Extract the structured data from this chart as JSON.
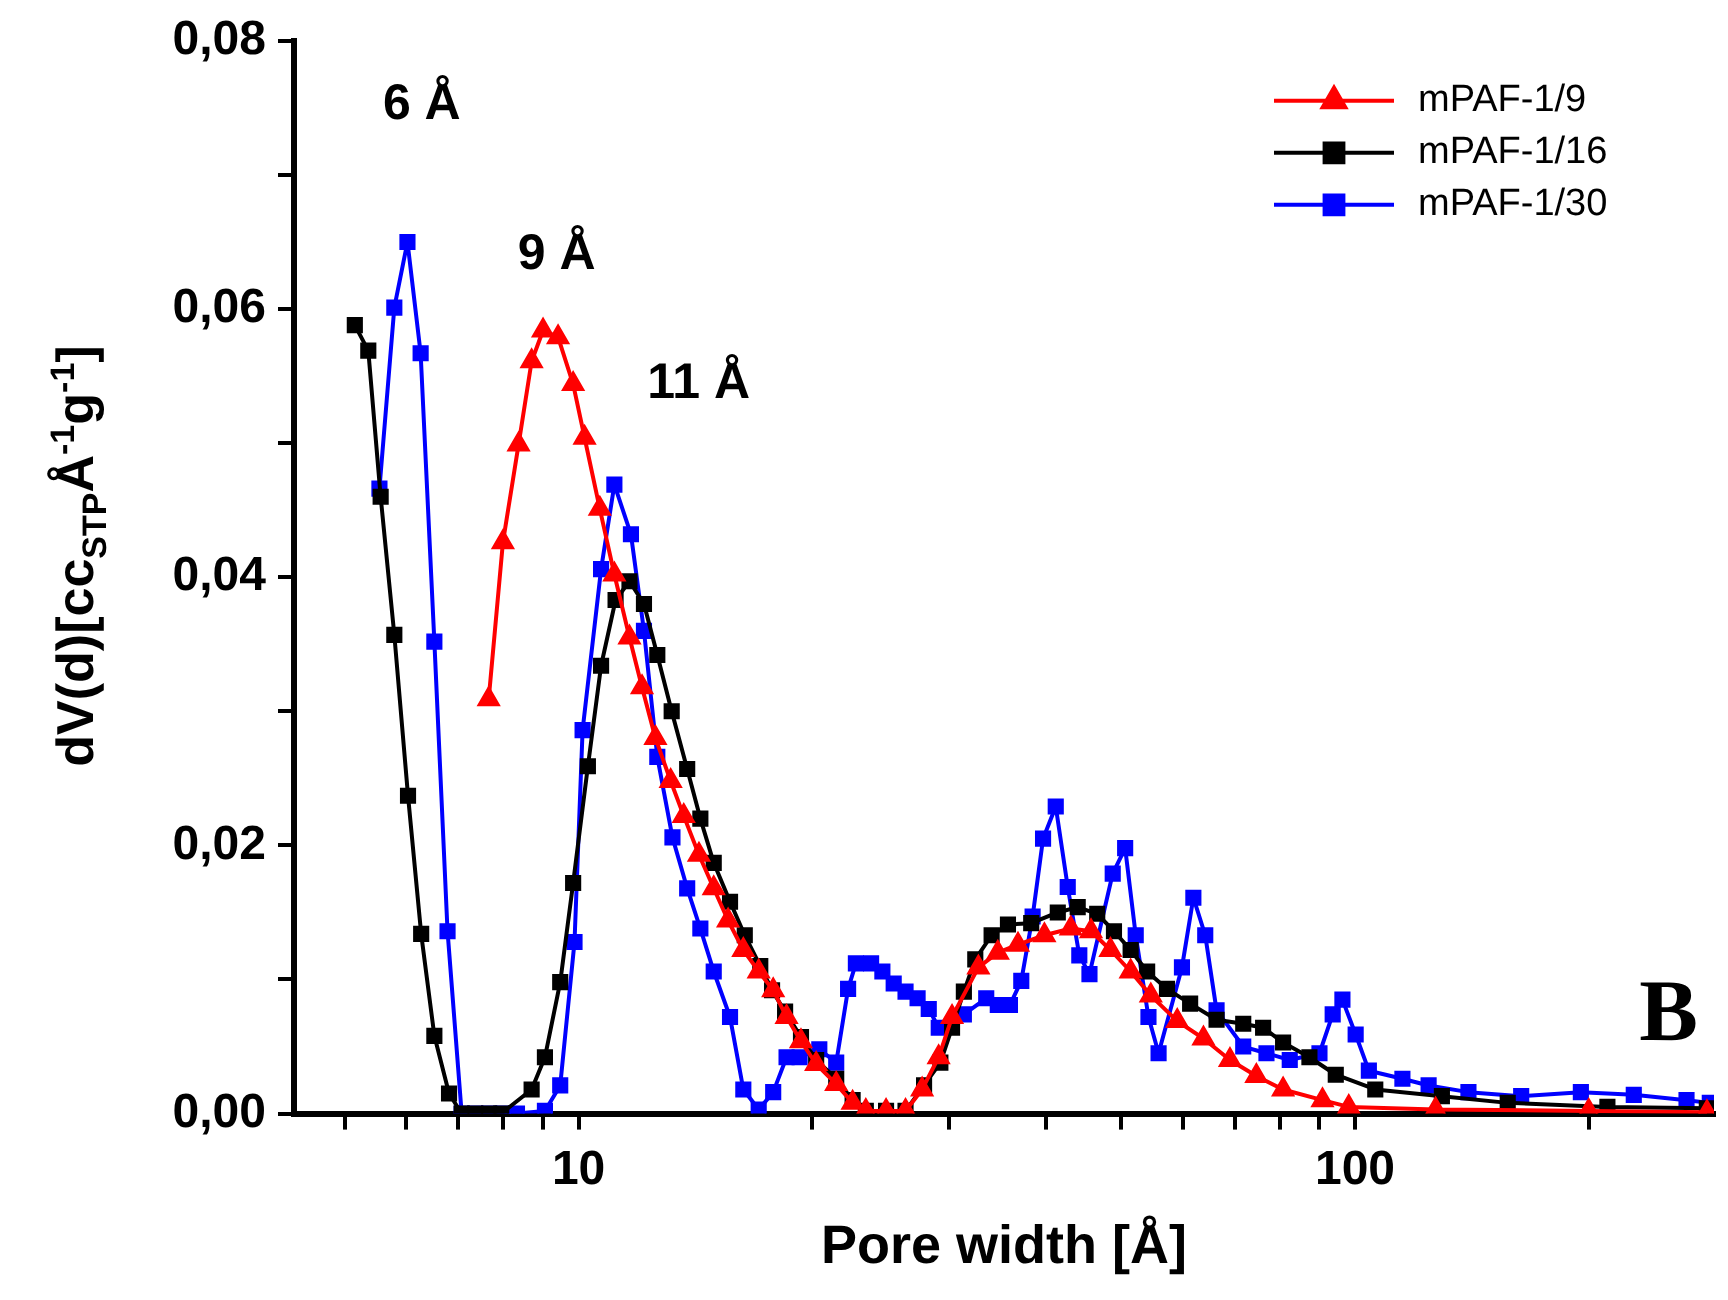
{
  "chart_data": {
    "type": "line",
    "xlabel": "Pore width [Å]",
    "ylabel": "dV(d)[cc$_{STP}$Å$^{-1}$g$^{-1}$]",
    "log": "x",
    "xlim": [
      4.3,
      290
    ],
    "ylim": [
      0,
      0.08
    ],
    "xticks": [
      {
        "value": 5,
        "label": null
      },
      {
        "value": 6,
        "label": null
      },
      {
        "value": 7,
        "label": null
      },
      {
        "value": 8,
        "label": null
      },
      {
        "value": 9,
        "label": null
      },
      10,
      {
        "value": 20,
        "label": null
      },
      {
        "value": 30,
        "label": null
      },
      {
        "value": 40,
        "label": null
      },
      {
        "value": 50,
        "label": null
      },
      {
        "value": 60,
        "label": null
      },
      {
        "value": 70,
        "label": null
      },
      {
        "value": 80,
        "label": null
      },
      {
        "value": 90,
        "label": null
      },
      100,
      {
        "value": 200,
        "label": null
      }
    ],
    "yticks": [
      {
        "value": 0,
        "label": "0,00"
      },
      {
        "value": 0.01,
        "label": null
      },
      {
        "value": 0.02,
        "label": "0,02"
      },
      {
        "value": 0.03,
        "label": null
      },
      {
        "value": 0.04,
        "label": "0,04"
      },
      {
        "value": 0.05,
        "label": null
      },
      {
        "value": 0.06,
        "label": "0,06"
      },
      {
        "value": 0.07,
        "label": null
      },
      {
        "value": 0.08,
        "label": "0,08"
      }
    ],
    "grid": false,
    "legend": "top right",
    "line_style": "solid",
    "annotations": [
      "6 Å",
      "9 Å",
      "11 Å",
      "B"
    ],
    "series": [
      {
        "name": "mPAF-1/9",
        "color": "#ff0000",
        "marker": "triangle",
        "x": [
          7.66,
          7.99,
          8.37,
          8.7,
          9.0,
          9.41,
          9.84,
          10.18,
          10.65,
          11.12,
          11.63,
          12.07,
          12.56,
          13.14,
          13.66,
          14.29,
          14.93,
          15.58,
          16.3,
          17.06,
          17.81,
          18.53,
          19.34,
          20.23,
          21.47,
          22.54,
          23.44,
          24.89,
          26.37,
          27.7,
          29.09,
          30.27,
          32.73,
          34.67,
          36.81,
          39.81,
          43.05,
          45.71,
          48.42,
          51.41,
          54.58,
          59.03,
          63.8,
          69.02,
          74.64,
          80.8,
          90.81,
          98.17,
          127,
          200,
          284
        ],
        "values": [
          0.0309,
          0.0426,
          0.0499,
          0.0561,
          0.0584,
          0.0579,
          0.0544,
          0.0504,
          0.0451,
          0.0402,
          0.0355,
          0.0318,
          0.028,
          0.0248,
          0.0222,
          0.0193,
          0.0168,
          0.0144,
          0.0122,
          0.0106,
          0.0092,
          0.0072,
          0.0054,
          0.0037,
          0.0022,
          0.0008,
          0.0002,
          0.0002,
          0.0002,
          0.0018,
          0.0042,
          0.0072,
          0.0109,
          0.012,
          0.0126,
          0.0133,
          0.0138,
          0.0136,
          0.0122,
          0.0106,
          0.0088,
          0.0069,
          0.0056,
          0.004,
          0.0028,
          0.0018,
          0.001,
          0.0005,
          0.0003,
          0.0002,
          0.0001
        ]
      },
      {
        "name": "mPAF-1/16",
        "color": "#000000",
        "marker": "square",
        "x": [
          5.15,
          5.36,
          5.56,
          5.79,
          6.03,
          6.27,
          6.52,
          6.81,
          7.07,
          7.36,
          7.67,
          7.95,
          8.7,
          9.05,
          9.47,
          9.84,
          10.28,
          10.69,
          11.16,
          11.63,
          12.14,
          12.63,
          13.18,
          13.8,
          14.35,
          14.93,
          15.67,
          16.37,
          17.14,
          17.75,
          18.45,
          19.34,
          20.23,
          21.47,
          22.54,
          23.44,
          24.89,
          26.37,
          27.86,
          29.24,
          30.27,
          31.35,
          32.43,
          34.04,
          35.73,
          38.28,
          41.42,
          43.94,
          46.56,
          48.93,
          51.41,
          53.99,
          57.26,
          61.33,
          66.33,
          71.79,
          76.15,
          80.8,
          87.36,
          94.46,
          106.2,
          129.4,
          157.3,
          211.4,
          283.9
        ],
        "values": [
          0.0588,
          0.0569,
          0.046,
          0.0357,
          0.0237,
          0.0134,
          0.0058,
          0.0015,
          0,
          0,
          0,
          0,
          0.0018,
          0.0042,
          0.0098,
          0.0172,
          0.0259,
          0.0334,
          0.0383,
          0.0397,
          0.038,
          0.0342,
          0.03,
          0.0257,
          0.022,
          0.0187,
          0.0158,
          0.0133,
          0.011,
          0.0092,
          0.0076,
          0.0057,
          0.004,
          0.0026,
          0.001,
          0.0002,
          0.0002,
          0.0002,
          0.0021,
          0.0038,
          0.0064,
          0.0091,
          0.0115,
          0.0133,
          0.0141,
          0.0142,
          0.015,
          0.0154,
          0.0149,
          0.0136,
          0.0122,
          0.0106,
          0.0093,
          0.0082,
          0.007,
          0.0067,
          0.0064,
          0.0053,
          0.0042,
          0.0029,
          0.0018,
          0.0013,
          0.0008,
          0.0005,
          0.0004
        ]
      },
      {
        "name": "mPAF-1/30",
        "color": "#0000ff",
        "marker": "square",
        "x": [
          5.54,
          5.79,
          6.02,
          6.26,
          6.52,
          6.78,
          7.07,
          7.36,
          7.67,
          7.99,
          8.33,
          9.05,
          9.47,
          9.88,
          10.12,
          10.69,
          11.12,
          11.68,
          12.14,
          12.63,
          13.21,
          13.8,
          14.35,
          14.93,
          15.67,
          16.3,
          17.06,
          17.81,
          18.53,
          19.26,
          20.42,
          21.47,
          22.24,
          22.76,
          23.81,
          24.62,
          25.46,
          26.37,
          27.33,
          28.25,
          29.1,
          31.35,
          33.5,
          34.67,
          35.94,
          37.17,
          38.44,
          39.65,
          41.17,
          42.66,
          44.15,
          45.5,
          48.75,
          50.58,
          52.19,
          54.2,
          55.85,
          59.86,
          61.92,
          64.14,
          66.33,
          71.79,
          76.91,
          82.41,
          90.0,
          93.6,
          96.34,
          100.2,
          104.2,
          115.1,
          124.4,
          140.0,
          163.7,
          195.4,
          228.6,
          267.3,
          286.4
        ],
        "values": [
          0.0466,
          0.0601,
          0.065,
          0.0567,
          0.0352,
          0.0136,
          0,
          0,
          0,
          0,
          0,
          0.0002,
          0.0021,
          0.0128,
          0.0286,
          0.0406,
          0.0469,
          0.0432,
          0.036,
          0.0266,
          0.0206,
          0.0168,
          0.0138,
          0.0106,
          0.0072,
          0.0018,
          0.0003,
          0.0016,
          0.0042,
          0.0042,
          0.0048,
          0.0038,
          0.0093,
          0.0112,
          0.0112,
          0.0106,
          0.0097,
          0.0091,
          0.0086,
          0.0078,
          0.0064,
          0.0074,
          0.0086,
          0.0081,
          0.0081,
          0.0099,
          0.0147,
          0.0205,
          0.0229,
          0.0169,
          0.0118,
          0.0104,
          0.0179,
          0.0198,
          0.0133,
          0.0072,
          0.0045,
          0.0109,
          0.0161,
          0.0133,
          0.0077,
          0.005,
          0.0045,
          0.004,
          0.0045,
          0.0074,
          0.0085,
          0.0059,
          0.0032,
          0.0026,
          0.0021,
          0.0016,
          0.0013,
          0.0016,
          0.0014,
          0.001,
          0.0008
        ]
      }
    ]
  }
}
